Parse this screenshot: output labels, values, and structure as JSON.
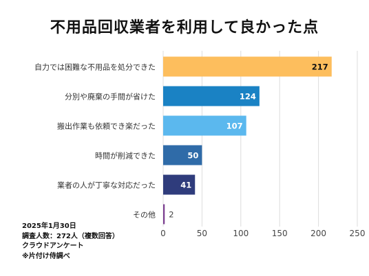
{
  "title": "不用品回収業者を利用して良かった点",
  "footnote": {
    "date": "2025年1月30日",
    "survey": "調査人数：272人（複数回答）",
    "method": "クラウドアンケート",
    "source": "※片付け侍調べ"
  },
  "chart_data": {
    "type": "bar",
    "orientation": "horizontal",
    "categories": [
      "自力では困難な不用品を処分できた",
      "分別や廃棄の手間が省けた",
      "搬出作業も依頼でき楽だった",
      "時間が削減できた",
      "業者の人が丁寧な対応だった",
      "その他"
    ],
    "values": [
      217,
      124,
      107,
      50,
      41,
      2
    ],
    "colors": [
      "#FDBE5D",
      "#1A82C4",
      "#5BB8EE",
      "#2F6BA8",
      "#2F3C7C",
      "#7B3F91"
    ],
    "xlim": [
      0,
      250
    ],
    "xticks": [
      0,
      50,
      100,
      150,
      200,
      250
    ],
    "grid": true,
    "legend": "none"
  }
}
